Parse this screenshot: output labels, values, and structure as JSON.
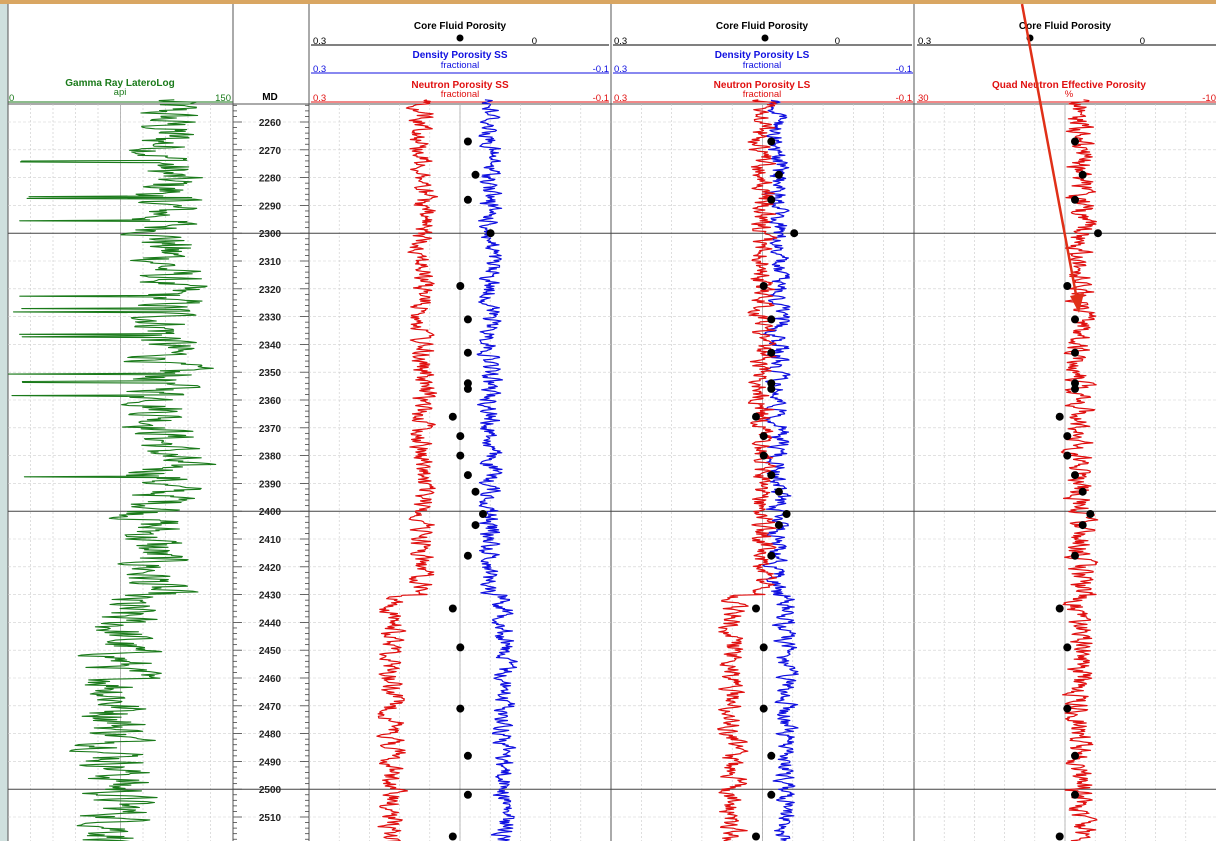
{
  "colors": {
    "frame": "#cfe0de",
    "banner": "#d9a662",
    "gamma": "#1a7a1a",
    "density": "#1010e0",
    "neutron": "#e01010",
    "core": "#000000",
    "arrow": "#e03018"
  },
  "header": {
    "gamma_title": "Gamma Ray LateroLog",
    "gamma_unit": "api",
    "gamma_min": "0",
    "gamma_max": "150",
    "md_label": "MD",
    "core_title": "Core Fluid Porosity",
    "core_left": "0.3",
    "core_right": "0",
    "dens_ss_title": "Density Porosity SS",
    "dens_ls_title": "Density Porosity LS",
    "neut_ss_title": "Neutron Porosity SS",
    "neut_ls_title": "Neutron Porosity LS",
    "fractional": "fractional",
    "scale_left": "0.3",
    "scale_right": "-0.1",
    "quad_title": "Quad Neutron Effective Porosity",
    "quad_unit": "%",
    "quad_left": "30",
    "quad_right": "-10"
  },
  "chart_data": {
    "type": "line",
    "title": "",
    "y_axis": {
      "label": "MD",
      "range": [
        2252,
        2520
      ],
      "ticks": [
        2260,
        2270,
        2280,
        2290,
        2300,
        2310,
        2320,
        2330,
        2340,
        2350,
        2360,
        2370,
        2380,
        2390,
        2400,
        2410,
        2420,
        2430,
        2440,
        2450,
        2460,
        2470,
        2480,
        2490,
        2500,
        2510
      ]
    },
    "tracks": [
      {
        "name": "gamma",
        "series": [
          {
            "name": "Gamma Ray LateroLog",
            "unit": "api",
            "range": [
              0,
              150
            ],
            "color": "#1a7a1a",
            "scale_label": "api"
          }
        ]
      },
      {
        "name": "porosity_ss",
        "series": [
          {
            "name": "Density Porosity SS",
            "unit": "fractional",
            "range": [
              0.3,
              -0.1
            ],
            "color": "#1010e0"
          },
          {
            "name": "Neutron Porosity SS",
            "unit": "fractional",
            "range": [
              0.3,
              -0.1
            ],
            "color": "#e01010"
          },
          {
            "name": "Core Fluid Porosity",
            "range": [
              0.3,
              0
            ],
            "color": "#000000"
          }
        ]
      },
      {
        "name": "porosity_ls",
        "series": [
          {
            "name": "Density Porosity LS",
            "unit": "fractional",
            "range": [
              0.3,
              -0.1
            ],
            "color": "#1010e0"
          },
          {
            "name": "Neutron Porosity LS",
            "unit": "fractional",
            "range": [
              0.3,
              -0.1
            ],
            "color": "#e01010"
          },
          {
            "name": "Core Fluid Porosity",
            "range": [
              0.3,
              0
            ],
            "color": "#000000"
          }
        ]
      },
      {
        "name": "quad",
        "series": [
          {
            "name": "Quad Neutron Effective Porosity",
            "unit": "%",
            "range": [
              30,
              -10
            ],
            "color": "#e01010"
          },
          {
            "name": "Core Fluid Porosity",
            "range": [
              0.3,
              0
            ],
            "color": "#000000"
          }
        ]
      }
    ],
    "core_points": [
      {
        "md": 2267,
        "phi": 0.09
      },
      {
        "md": 2279,
        "phi": 0.08
      },
      {
        "md": 2288,
        "phi": 0.09
      },
      {
        "md": 2300,
        "phi": 0.06
      },
      {
        "md": 2319,
        "phi": 0.1
      },
      {
        "md": 2331,
        "phi": 0.09
      },
      {
        "md": 2343,
        "phi": 0.09
      },
      {
        "md": 2354,
        "phi": 0.09
      },
      {
        "md": 2356,
        "phi": 0.09
      },
      {
        "md": 2366,
        "phi": 0.11
      },
      {
        "md": 2373,
        "phi": 0.1
      },
      {
        "md": 2380,
        "phi": 0.1
      },
      {
        "md": 2387,
        "phi": 0.09
      },
      {
        "md": 2393,
        "phi": 0.08
      },
      {
        "md": 2401,
        "phi": 0.07
      },
      {
        "md": 2405,
        "phi": 0.08
      },
      {
        "md": 2416,
        "phi": 0.09
      },
      {
        "md": 2435,
        "phi": 0.11
      },
      {
        "md": 2449,
        "phi": 0.1
      },
      {
        "md": 2471,
        "phi": 0.1
      },
      {
        "md": 2488,
        "phi": 0.09
      },
      {
        "md": 2502,
        "phi": 0.09
      },
      {
        "md": 2517,
        "phi": 0.11
      }
    ],
    "grid": true
  }
}
